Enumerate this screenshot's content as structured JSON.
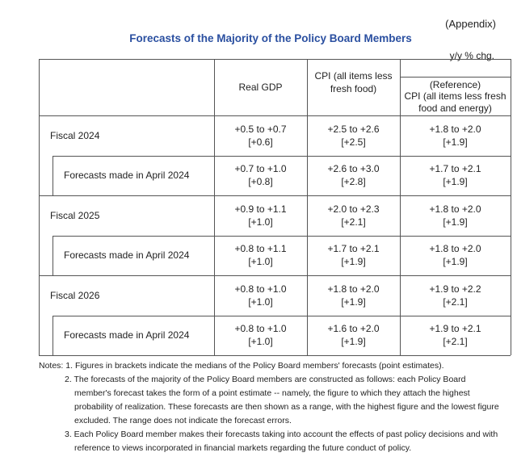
{
  "appendix": "(Appendix)",
  "title": "Forecasts of the Majority of the Policy Board Members",
  "unit": "y/y % chg.",
  "headers": {
    "gdp": "Real GDP",
    "cpi": "CPI (all items less fresh food)",
    "ref_label": "(Reference)",
    "ref": "CPI (all items less fresh food and energy)"
  },
  "rows": [
    {
      "label": "Fiscal 2024",
      "gdp": "+0.5 to +0.7",
      "gdp_med": "[+0.6]",
      "cpi": "+2.5 to +2.6",
      "cpi_med": "[+2.5]",
      "ref": "+1.8 to +2.0",
      "ref_med": "[+1.9]"
    },
    {
      "label": "Forecasts made in April 2024",
      "gdp": "+0.7 to +1.0",
      "gdp_med": "[+0.8]",
      "cpi": "+2.6 to +3.0",
      "cpi_med": "[+2.8]",
      "ref": "+1.7 to +2.1",
      "ref_med": "[+1.9]"
    },
    {
      "label": "Fiscal 2025",
      "gdp": "+0.9 to +1.1",
      "gdp_med": "[+1.0]",
      "cpi": "+2.0 to +2.3",
      "cpi_med": "[+2.1]",
      "ref": "+1.8 to +2.0",
      "ref_med": "[+1.9]"
    },
    {
      "label": "Forecasts made in April 2024",
      "gdp": "+0.8 to +1.1",
      "gdp_med": "[+1.0]",
      "cpi": "+1.7 to +2.1",
      "cpi_med": "[+1.9]",
      "ref": "+1.8 to +2.0",
      "ref_med": "[+1.9]"
    },
    {
      "label": "Fiscal 2026",
      "gdp": "+0.8 to +1.0",
      "gdp_med": "[+1.0]",
      "cpi": "+1.8 to +2.0",
      "cpi_med": "[+1.9]",
      "ref": "+1.9 to +2.2",
      "ref_med": "[+2.1]"
    },
    {
      "label": "Forecasts made in April 2024",
      "gdp": "+0.8 to +1.0",
      "gdp_med": "[+1.0]",
      "cpi": "+1.6 to +2.0",
      "cpi_med": "[+1.9]",
      "ref": "+1.9 to +2.1",
      "ref_med": "[+2.1]"
    }
  ],
  "notes": [
    "Notes: 1. Figures in brackets indicate the medians of the Policy Board members' forecasts (point estimates).",
    "2. The forecasts of the majority of the Policy Board members are constructed as follows: each Policy Board member's forecast takes the form of a point estimate -- namely, the figure to which they attach the highest probability of realization. These forecasts are then shown as a range, with the highest figure and the lowest figure excluded. The range does not indicate the forecast errors.",
    "3. Each Policy Board member makes their forecasts taking into account the effects of past policy decisions and with reference to views incorporated in financial markets regarding the future conduct of policy."
  ]
}
